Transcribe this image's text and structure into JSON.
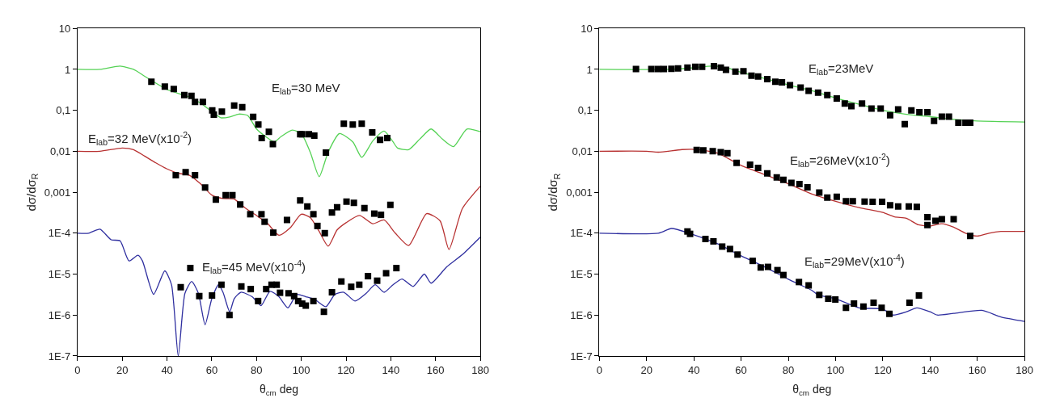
{
  "chart_data": [
    {
      "type": "line",
      "xlabel": "θ$_{cm}$ deg",
      "ylabel": "dσ/dσ$_{R}$",
      "log": "y",
      "xlim": [
        0,
        180
      ],
      "ylim": [
        1e-07,
        10
      ],
      "xticks": [
        0,
        20,
        40,
        60,
        80,
        100,
        120,
        140,
        160,
        180
      ],
      "yticks": [
        10,
        1,
        {
          "value": 0.1,
          "label": "0,1"
        },
        {
          "value": 0.01,
          "label": "0,01"
        },
        {
          "value": 0.001,
          "label": "0,001"
        },
        {
          "value": 0.0001,
          "label": "1E-4"
        },
        {
          "value": 1e-05,
          "label": "1E-5"
        },
        {
          "value": 1e-06,
          "label": "1E-6"
        },
        {
          "value": 1e-07,
          "label": "1E-7"
        }
      ],
      "annotations": [
        "E$_{lab}$=30 MeV",
        "E$_{lab}$=32 MeV(x10$^{-2}$)",
        "E$_{lab}$=45 MeV(x10$^{-4}$)"
      ],
      "series": [
        {
          "color": "#55d255",
          "marker": "none",
          "x": [
            0,
            10,
            19,
            25,
            30,
            40,
            50,
            55,
            60,
            64,
            68,
            72,
            76,
            80,
            84,
            88,
            91,
            96,
            100,
            104,
            108,
            112,
            117,
            123,
            127,
            132,
            137,
            141,
            143,
            148,
            153,
            158,
            163,
            168,
            174,
            180
          ],
          "values": [
            1.0,
            1.0,
            1.2,
            1.0,
            0.68,
            0.32,
            0.21,
            0.15,
            0.093,
            0.066,
            0.069,
            0.081,
            0.075,
            0.035,
            0.023,
            0.017,
            0.023,
            0.033,
            0.027,
            0.0095,
            0.0024,
            0.0095,
            0.027,
            0.017,
            0.0071,
            0.018,
            0.031,
            0.017,
            0.012,
            0.011,
            0.02,
            0.035,
            0.02,
            0.013,
            0.035,
            0.03
          ]
        },
        {
          "color": "#b83232",
          "marker": "none",
          "x": [
            0,
            10,
            20,
            25,
            30,
            35,
            40,
            45,
            50,
            55,
            60,
            65,
            70,
            75,
            80,
            85,
            90,
            95,
            100,
            104,
            108,
            112,
            116,
            120,
            126,
            132,
            137,
            142,
            148,
            156,
            162,
            166,
            172,
            180
          ],
          "values": [
            0.01,
            0.01,
            0.012,
            0.011,
            0.0076,
            0.0052,
            0.0037,
            0.0029,
            0.0026,
            0.0016,
            0.00085,
            0.0007,
            0.00068,
            0.00041,
            0.00027,
            0.00017,
            8.9e-05,
            0.000135,
            0.00029,
            0.00024,
            0.00011,
            4.8e-05,
            0.00012,
            0.00018,
            0.00027,
            0.00017,
            0.00021,
            0.0001,
            5e-05,
            0.0003,
            0.0002,
            4e-05,
            0.0004,
            0.0014
          ]
        },
        {
          "color": "#3030a0",
          "marker": "none",
          "x": [
            0,
            5,
            10,
            15,
            19,
            23,
            27,
            29,
            34,
            39,
            42,
            45,
            48,
            51,
            54,
            57,
            60,
            63,
            65,
            68,
            70,
            73,
            78,
            82,
            86,
            90,
            94,
            98,
            102,
            106,
            111,
            115,
            119,
            124,
            129,
            133,
            137,
            141,
            145,
            150,
            155,
            158,
            165,
            172,
            180
          ],
          "values": [
            0.0001,
            0.0001,
            0.000125,
            6.9e-05,
            6.5e-05,
            2.1e-05,
            2.9e-05,
            2.1e-05,
            3.2e-06,
            1.2e-05,
            5.5e-06,
            1e-07,
            3.4e-06,
            6.6e-06,
            3.4e-06,
            5.8e-07,
            2.5e-06,
            5.5e-06,
            3.6e-06,
            1.2e-06,
            2.5e-06,
            3.6e-06,
            2.8e-06,
            1.7e-06,
            3.8e-06,
            2.8e-06,
            1.5e-06,
            3.2e-06,
            2.8e-06,
            2.4e-06,
            1.6e-06,
            3.2e-06,
            3.6e-06,
            2.2e-06,
            3.4e-06,
            5.5e-06,
            3.6e-06,
            5.5e-06,
            7.6e-06,
            5e-06,
            1e-05,
            6e-06,
            1.5e-05,
            3e-05,
            8e-05
          ]
        },
        {
          "type": "scatter",
          "color": "#000000",
          "marker": "square",
          "x": [
            33,
            39,
            43,
            47.7,
            50.9,
            52.5,
            56,
            60.2,
            60.9,
            64.5,
            70,
            73.6,
            78.5,
            80.8,
            82.3,
            85.5,
            87.3,
            99.5,
            100.4,
            103.4,
            105.8,
            111,
            119,
            123,
            127,
            131.7,
            135.2,
            138.4
          ],
          "values": [
            0.5,
            0.38,
            0.33,
            0.235,
            0.225,
            0.16,
            0.16,
            0.1,
            0.078,
            0.093,
            0.13,
            0.12,
            0.069,
            0.045,
            0.021,
            0.03,
            0.015,
            0.026,
            0.026,
            0.026,
            0.024,
            0.0093,
            0.047,
            0.045,
            0.047,
            0.029,
            0.019,
            0.021
          ]
        },
        {
          "type": "scatter",
          "color": "#000000",
          "marker": "square",
          "x": [
            43.9,
            48.3,
            52.5,
            57,
            61.8,
            66.2,
            69.2,
            72.7,
            77.2,
            82.2,
            83.6,
            87.5,
            93.6,
            99.5,
            102.7,
            105.4,
            107.2,
            110.5,
            113.7,
            116,
            120.2,
            123.5,
            128.2,
            132.6,
            135.6,
            139.8
          ],
          "values": [
            0.0026,
            0.0031,
            0.0026,
            0.0013,
            0.00066,
            0.00085,
            0.00085,
            0.0005,
            0.00029,
            0.00029,
            0.00019,
            0.000103,
            0.00021,
            0.00063,
            0.00045,
            0.00029,
            0.00015,
            0.0001,
            0.00032,
            0.00043,
            0.00059,
            0.00055,
            0.00041,
            0.0003,
            0.00028,
            0.00049
          ]
        },
        {
          "type": "scatter",
          "color": "#000000",
          "marker": "square",
          "x": [
            46.1,
            50.4,
            54.4,
            60.1,
            64.3,
            67.9,
            73.2,
            77.4,
            80.7,
            84.3,
            86.7,
            89,
            90.5,
            94.3,
            96.8,
            98.6,
            100.4,
            102,
            105.4,
            110.1,
            113.7,
            117.9,
            122.3,
            125.9,
            129.8,
            133.9,
            137.9,
            142.5
          ],
          "values": [
            4.8e-06,
            1.4e-05,
            2.9e-06,
            3e-06,
            5.5e-06,
            1e-06,
            5e-06,
            4.3e-06,
            2.2e-06,
            4.3e-06,
            5.5e-06,
            5.5e-06,
            3.5e-06,
            3.4e-06,
            2.9e-06,
            2.2e-06,
            1.9e-06,
            1.7e-06,
            2.2e-06,
            1.2e-06,
            3.6e-06,
            6.6e-06,
            4.9e-06,
            5.5e-06,
            8.9e-06,
            6.9e-06,
            1.05e-05,
            1.4e-05
          ]
        }
      ]
    },
    {
      "type": "line",
      "xlabel": "θ$_{cm}$ deg",
      "ylabel": "dσ/dσ$_{R}$",
      "log": "y",
      "xlim": [
        0,
        180
      ],
      "ylim": [
        1e-07,
        10
      ],
      "xticks": [
        0,
        20,
        40,
        60,
        80,
        100,
        120,
        140,
        160,
        180
      ],
      "yticks": [
        10,
        1,
        {
          "value": 0.1,
          "label": "0,1"
        },
        {
          "value": 0.01,
          "label": "0,01"
        },
        {
          "value": 0.001,
          "label": "0,001"
        },
        {
          "value": 0.0001,
          "label": "1E-4"
        },
        {
          "value": 1e-05,
          "label": "1E-5"
        },
        {
          "value": 1e-06,
          "label": "1E-6"
        },
        {
          "value": 1e-07,
          "label": "1E-7"
        }
      ],
      "annotations": [
        "E$_{lab}$=23MeV",
        "E$_{lab}$=26MeV(x10$^{-2}$)",
        "E$_{lab}$=29MeV(x10$^{-4}$)"
      ],
      "series": [
        {
          "color": "#55d255",
          "marker": "none",
          "x": [
            0,
            30,
            40,
            48,
            55,
            60,
            70,
            80,
            90,
            100,
            110,
            120,
            130,
            140,
            150,
            160,
            180
          ],
          "values": [
            1.0,
            1.0,
            1.1,
            1.2,
            1.05,
            0.85,
            0.6,
            0.42,
            0.3,
            0.2,
            0.14,
            0.1,
            0.08,
            0.07,
            0.06,
            0.055,
            0.052
          ]
        },
        {
          "color": "#b83232",
          "marker": "none",
          "x": [
            0,
            20,
            25,
            35,
            42,
            50,
            60,
            70,
            80,
            90,
            100,
            110,
            120,
            125,
            130,
            135,
            140,
            145,
            150,
            155,
            160,
            165,
            170,
            180
          ],
          "values": [
            0.01,
            0.01,
            0.0095,
            0.011,
            0.011,
            0.009,
            0.0045,
            0.0027,
            0.0016,
            0.0009,
            0.0006,
            0.00042,
            0.00032,
            0.00025,
            0.00023,
            0.00016,
            0.00015,
            0.00017,
            0.00014,
            0.0001,
            8.5e-05,
            0.0001,
            0.00011,
            0.00011
          ]
        },
        {
          "color": "#3030a0",
          "marker": "none",
          "x": [
            0,
            25,
            30.5,
            38,
            50,
            60,
            70,
            80,
            90,
            92.6,
            100,
            110,
            120,
            124.2,
            130,
            134.4,
            140,
            143,
            150,
            162,
            170,
            180
          ],
          "values": [
            0.0001,
            0.0001,
            0.00013,
            0.0001,
            5.5e-05,
            2.8e-05,
            1.5e-05,
            7.5e-06,
            4e-06,
            3.1e-06,
            2.5e-06,
            1.5e-06,
            1.4e-06,
            1e-06,
            1.2e-06,
            1.5e-06,
            1.2e-06,
            1e-06,
            1.1e-06,
            1.3e-06,
            9e-07,
            7e-07
          ]
        },
        {
          "type": "scatter",
          "color": "#000000",
          "marker": "square",
          "x": [
            15.5,
            22,
            24.8,
            27.3,
            30.5,
            33.3,
            37.3,
            40.6,
            43.5,
            48.5,
            51.4,
            53.6,
            57.6,
            61,
            64.4,
            67.2,
            71.1,
            74.5,
            77.3,
            80.7,
            85.2,
            88.6,
            92.6,
            96.5,
            100.5,
            103.9,
            106.7,
            111.2,
            115.2,
            119.1,
            123.1,
            126.5,
            129.3,
            132.1,
            135.5,
            138.9,
            141.7,
            145,
            148,
            152,
            155,
            157
          ],
          "values": [
            1.02,
            1.02,
            1.02,
            1.02,
            1.03,
            1.05,
            1.1,
            1.15,
            1.15,
            1.2,
            1.1,
            0.97,
            0.88,
            0.9,
            0.7,
            0.67,
            0.58,
            0.5,
            0.48,
            0.41,
            0.36,
            0.3,
            0.27,
            0.235,
            0.195,
            0.147,
            0.127,
            0.147,
            0.11,
            0.11,
            0.076,
            0.105,
            0.046,
            0.1,
            0.09,
            0.09,
            0.055,
            0.07,
            0.07,
            0.05,
            0.05,
            0.05
          ]
        },
        {
          "type": "scatter",
          "color": "#000000",
          "marker": "square",
          "x": [
            41.2,
            44,
            48,
            51.4,
            54.2,
            58.1,
            63.8,
            67.2,
            71.1,
            75.1,
            77.9,
            81.3,
            84.7,
            88.1,
            93.1,
            96.5,
            100.5,
            104.4,
            107.3,
            112.3,
            115.7,
            119.7,
            123.1,
            126.5,
            131,
            134.4,
            138.9,
            138.9,
            142.3,
            145,
            150,
            157
          ],
          "values": [
            0.0107,
            0.0105,
            0.01,
            0.0095,
            0.009,
            0.0052,
            0.0047,
            0.0039,
            0.0029,
            0.0023,
            0.002,
            0.0017,
            0.00158,
            0.00132,
            0.00098,
            0.00074,
            0.00077,
            0.0006,
            0.0006,
            0.00059,
            0.00058,
            0.00058,
            0.00048,
            0.00045,
            0.00045,
            0.00044,
            0.000245,
            0.000158,
            0.0002,
            0.00022,
            0.00022,
            8.5e-05
          ]
        },
        {
          "type": "scatter",
          "color": "#000000",
          "marker": "square",
          "x": [
            37.3,
            38.4,
            44.9,
            48.3,
            52,
            55.3,
            58.5,
            64.9,
            68.3,
            71.4,
            75.4,
            77.9,
            84.5,
            88.6,
            93.1,
            96.9,
            99.9,
            104.4,
            107.8,
            111.8,
            116.1,
            119.5,
            122.8,
            131.3,
            135.3
          ],
          "values": [
            0.00011,
            9.6e-05,
            7.2e-05,
            6.3e-05,
            4.7e-05,
            4.1e-05,
            3e-05,
            2.1e-05,
            1.45e-05,
            1.5e-05,
            1.25e-05,
            9.5e-06,
            6.4e-06,
            5.3e-06,
            3.1e-06,
            2.5e-06,
            2.4e-06,
            1.5e-06,
            1.9e-06,
            1.6e-06,
            2e-06,
            1.5e-06,
            1.07e-06,
            2e-06,
            3e-06
          ]
        }
      ]
    }
  ]
}
